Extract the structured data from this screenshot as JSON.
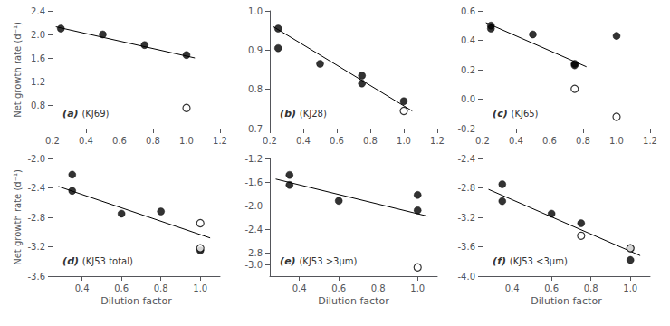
{
  "chart_data": [
    {
      "type": "scatter",
      "annotations": [
        "(a)",
        "(KJ69)"
      ],
      "ylabel": "Net growth rate (d⁻¹)",
      "grid": false,
      "xlim": [
        0.2,
        1.2
      ],
      "xticks": [
        0.2,
        0.4,
        0.6,
        0.8,
        {
          "value": 1.0,
          "label": "1.0"
        },
        1.2
      ],
      "ylim": [
        0.4,
        2.4
      ],
      "yticks": [
        0.8,
        1.2,
        1.6,
        {
          "value": 2.0,
          "label": "2.0"
        },
        2.4
      ],
      "series": [
        {
          "type": "line",
          "color": "black",
          "x": [
            0.22,
            1.05
          ],
          "values": [
            2.13,
            1.6
          ]
        },
        {
          "type": "scatter",
          "marker": "filled",
          "color": "black",
          "x": [
            0.25,
            0.5,
            0.75,
            1.0
          ],
          "values": [
            2.1,
            2.0,
            1.82,
            1.65
          ]
        },
        {
          "type": "scatter",
          "marker": "open",
          "color": "black",
          "x": [
            1.0
          ],
          "values": [
            0.75
          ]
        }
      ]
    },
    {
      "type": "scatter",
      "annotations": [
        "(b)",
        "(KJ28)"
      ],
      "grid": false,
      "xlim": [
        0.2,
        1.2
      ],
      "xticks": [
        0.2,
        0.4,
        0.6,
        0.8,
        {
          "value": 1.0,
          "label": "1.0"
        },
        1.2
      ],
      "ylim": [
        0.7,
        1.0
      ],
      "yticks": [
        0.7,
        0.8,
        0.9,
        {
          "value": 1.0,
          "label": "1.0"
        }
      ],
      "series": [
        {
          "type": "line",
          "color": "black",
          "x": [
            0.22,
            1.05
          ],
          "values": [
            0.96,
            0.745
          ]
        },
        {
          "type": "scatter",
          "marker": "filled",
          "color": "black",
          "x": [
            0.25,
            0.25,
            0.5,
            0.75,
            0.75,
            1.0
          ],
          "values": [
            0.955,
            0.905,
            0.865,
            0.835,
            0.815,
            0.77
          ]
        },
        {
          "type": "scatter",
          "marker": "open",
          "color": "black",
          "x": [
            1.0
          ],
          "values": [
            0.745
          ]
        }
      ]
    },
    {
      "type": "scatter",
      "annotations": [
        "(c)",
        "(KJ65)"
      ],
      "grid": false,
      "xlim": [
        0.2,
        1.2
      ],
      "xticks": [
        0.2,
        0.4,
        0.6,
        0.8,
        {
          "value": 1.0,
          "label": "1.0"
        },
        1.2
      ],
      "ylim": [
        -0.2,
        0.6
      ],
      "yticks": [
        -0.2,
        {
          "value": 0.0,
          "label": "0.0"
        },
        0.2,
        0.4,
        0.6
      ],
      "series": [
        {
          "type": "line",
          "color": "black",
          "x": [
            0.22,
            0.82
          ],
          "values": [
            0.52,
            0.22
          ]
        },
        {
          "type": "scatter",
          "marker": "filled",
          "color": "black",
          "x": [
            0.25,
            0.25,
            0.5,
            0.75,
            0.75,
            1.0
          ],
          "values": [
            0.5,
            0.48,
            0.44,
            0.24,
            0.23,
            0.43
          ]
        },
        {
          "type": "scatter",
          "marker": "open",
          "color": "black",
          "x": [
            0.75,
            1.0
          ],
          "values": [
            0.07,
            -0.12
          ]
        }
      ]
    },
    {
      "type": "scatter",
      "annotations": [
        "(d)",
        "(KJ53 total)"
      ],
      "xlabel": "Dilution factor",
      "ylabel": "Net growth rate (d⁻¹)",
      "grid": false,
      "xlim": [
        0.25,
        1.1
      ],
      "xticks": [
        0.4,
        0.6,
        0.8,
        {
          "value": 1.0,
          "label": "1.0"
        }
      ],
      "ylim": [
        -3.6,
        -2.0
      ],
      "yticks": [
        -3.6,
        -3.2,
        -2.8,
        -2.4,
        {
          "value": -2.0,
          "label": "-2.0"
        }
      ],
      "series": [
        {
          "type": "line",
          "color": "black",
          "x": [
            0.28,
            1.05
          ],
          "values": [
            -2.38,
            -3.08
          ]
        },
        {
          "type": "scatter",
          "marker": "filled",
          "color": "black",
          "x": [
            0.35,
            0.35,
            0.6,
            0.8,
            1.0
          ],
          "values": [
            -2.22,
            -2.44,
            -2.75,
            -2.72,
            -3.25
          ]
        },
        {
          "type": "scatter",
          "marker": "open",
          "color": "black",
          "x": [
            1.0,
            1.0
          ],
          "values": [
            -2.88,
            -3.22
          ]
        }
      ]
    },
    {
      "type": "scatter",
      "annotations": [
        "(e)",
        "(KJ53 >3μm)"
      ],
      "xlabel": "Dilution factor",
      "grid": false,
      "xlim": [
        0.25,
        1.1
      ],
      "xticks": [
        0.4,
        0.6,
        0.8,
        {
          "value": 1.0,
          "label": "1.0"
        }
      ],
      "ylim": [
        -3.2,
        -1.2
      ],
      "yticks": [
        {
          "value": -3.0,
          "label": "-3.0"
        },
        -2.8,
        -2.4,
        {
          "value": -2.0,
          "label": "-2.0"
        },
        -1.6,
        -1.2
      ],
      "series": [
        {
          "type": "line",
          "color": "black",
          "x": [
            0.28,
            1.05
          ],
          "values": [
            -1.55,
            -2.18
          ]
        },
        {
          "type": "scatter",
          "marker": "filled",
          "color": "black",
          "x": [
            0.35,
            0.35,
            0.6,
            1.0,
            1.0
          ],
          "values": [
            -1.48,
            -1.65,
            -1.92,
            -1.82,
            -2.08
          ]
        },
        {
          "type": "scatter",
          "marker": "open",
          "color": "black",
          "x": [
            1.0
          ],
          "values": [
            -3.05
          ]
        }
      ]
    },
    {
      "type": "scatter",
      "annotations": [
        "(f)",
        "(KJ53 <3μm)"
      ],
      "xlabel": "Dilution factor",
      "grid": false,
      "xlim": [
        0.25,
        1.1
      ],
      "xticks": [
        0.4,
        0.6,
        0.8,
        {
          "value": 1.0,
          "label": "1.0"
        }
      ],
      "ylim": [
        -4.0,
        -2.4
      ],
      "yticks": [
        {
          "value": -4.0,
          "label": "-4.0"
        },
        -3.6,
        -3.2,
        -2.8,
        -2.4
      ],
      "series": [
        {
          "type": "line",
          "color": "black",
          "x": [
            0.28,
            1.05
          ],
          "values": [
            -2.82,
            -3.72
          ]
        },
        {
          "type": "scatter",
          "marker": "filled",
          "color": "black",
          "x": [
            0.35,
            0.35,
            0.6,
            0.75,
            1.0,
            1.0
          ],
          "values": [
            -2.75,
            -2.98,
            -3.15,
            -3.28,
            -3.62,
            -3.78
          ]
        },
        {
          "type": "scatter",
          "marker": "open",
          "color": "black",
          "x": [
            0.75,
            1.0
          ],
          "values": [
            -3.45,
            -3.62
          ]
        }
      ]
    }
  ]
}
